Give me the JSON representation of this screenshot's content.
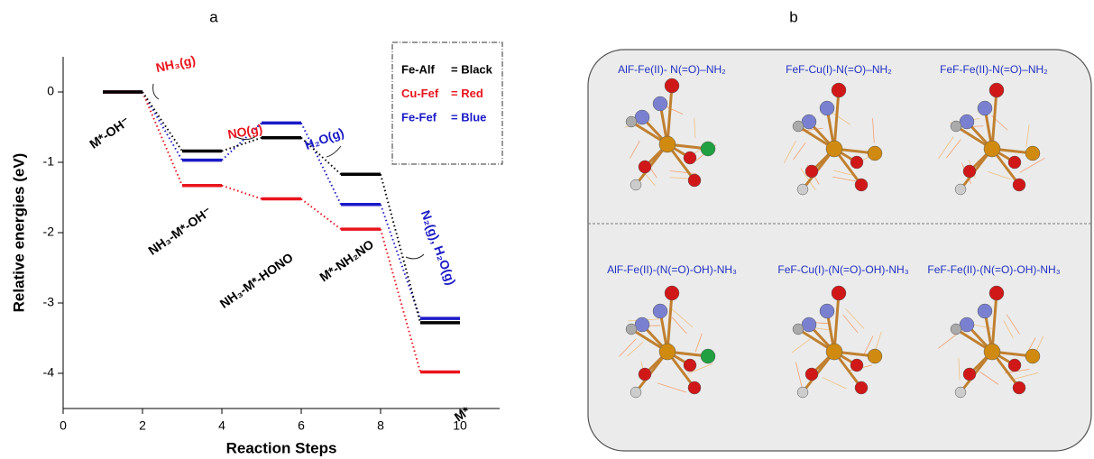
{
  "chart_data": {
    "type": "energy-levels",
    "panel_label": "a",
    "x_label": "Reaction Steps",
    "y_label": "Relative energies (eV)",
    "x": [
      1,
      2,
      3,
      4,
      5,
      6,
      7,
      8,
      9,
      10
    ],
    "series": [
      {
        "name": "Fe-Alf",
        "color_label": "= Black",
        "color": "#000000",
        "values": [
          0,
          0,
          -0.84,
          -0.84,
          -0.65,
          -0.65,
          -1.17,
          -1.17,
          -3.28,
          -3.28
        ]
      },
      {
        "name": "Cu-Fef",
        "color_label": "= Red",
        "color": "#e8141c",
        "values": [
          0,
          0,
          -1.33,
          -1.33,
          -1.52,
          -1.52,
          -1.95,
          -1.95,
          -3.98,
          -3.98
        ]
      },
      {
        "name": "Fe-Fef",
        "color_label": "= Blue",
        "color": "#1a1ac8",
        "values": [
          0,
          0,
          -0.97,
          -0.97,
          -0.44,
          -0.44,
          -1.6,
          -1.6,
          -3.22,
          -3.22
        ]
      }
    ],
    "xlim": [
      0,
      11
    ],
    "xticks": [
      0,
      2,
      4,
      6,
      8,
      10
    ],
    "ylim": [
      -4.5,
      0.5
    ],
    "yticks": [
      -4,
      -3,
      -2,
      -1,
      0
    ],
    "annotations": [
      {
        "text": "NH₃(g)",
        "color": "#e8141c"
      },
      {
        "text": "NO(g)",
        "color": "#e8141c"
      },
      {
        "text": "H₂O(g)",
        "color": "#1a1ac8"
      },
      {
        "text": "N₂(g), H₂O(g)",
        "color": "#1a1ac8"
      },
      {
        "text": "M*-OH⁻",
        "color": "#000000"
      },
      {
        "text": "NH₃-M*-OH⁻",
        "color": "#000000"
      },
      {
        "text": "NH₃-M*-HONO",
        "color": "#000000"
      },
      {
        "text": "M*-NH₂NO",
        "color": "#000000"
      },
      {
        "text": "M*",
        "color": "#000000"
      }
    ]
  },
  "panel_b": {
    "label": "b",
    "structures": [
      "AlF-Fe(II)- N(=O)–NH₂",
      "FeF-Cu(I)-N(=O)–NH₂",
      "FeF-Fe(II)-N(=O)–NH₂",
      "AlF-Fe(II)-(N(=O)-OH)-NH₃",
      "FeF-Cu(I)-(N(=O)-OH)-NH₃",
      "FeF-Fe(II)-(N(=O)-OH)-NH₃"
    ]
  }
}
